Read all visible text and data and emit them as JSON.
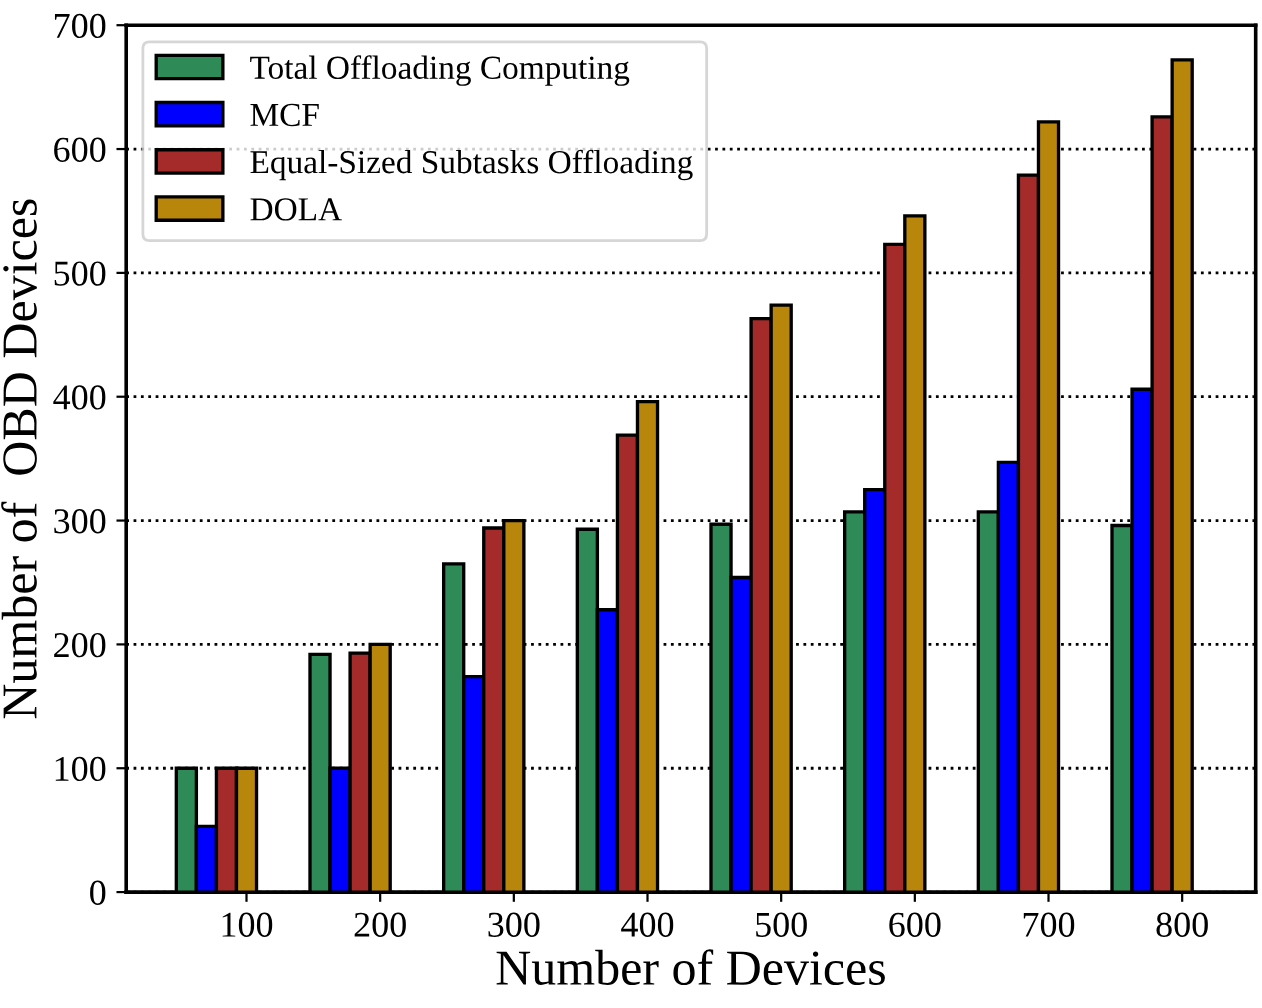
{
  "chart_data": {
    "type": "bar",
    "xlabel": "Number of Devices",
    "ylabel": "Number of  OBD Devices",
    "categories": [
      "100",
      "200",
      "300",
      "400",
      "500",
      "600",
      "700",
      "800"
    ],
    "series": [
      {
        "name": "Total Offloading Computing",
        "color": "#2e8b57",
        "values": [
          100,
          192,
          265,
          293,
          297,
          307,
          307,
          296
        ]
      },
      {
        "name": "MCF",
        "color": "#0000ff",
        "values": [
          53,
          100,
          174,
          228,
          254,
          325,
          347,
          406
        ]
      },
      {
        "name": "Equal-Sized Subtasks Offloading",
        "color": "#a52a2a",
        "values": [
          100,
          193,
          294,
          369,
          463,
          523,
          579,
          626
        ]
      },
      {
        "name": "DOLA",
        "color": "#b8860b",
        "values": [
          100,
          200,
          300,
          396,
          474,
          546,
          622,
          672
        ]
      }
    ],
    "ylim": [
      0,
      700
    ],
    "yticks": [
      0,
      100,
      200,
      300,
      400,
      500,
      600,
      700
    ],
    "grid": "y",
    "legend": "top left"
  }
}
